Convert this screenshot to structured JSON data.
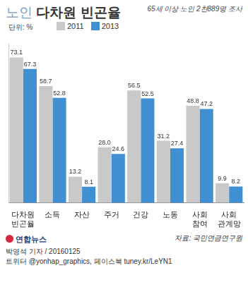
{
  "chart_data": {
    "type": "bar",
    "title": "노인 다차원 빈곤율",
    "subtitle": "65세 이상 노인 2천889명 조사",
    "unit_label": "단위: %",
    "source": "자료: 국민연금연구원",
    "credit": "박영석 기자 / 20160125",
    "social": "트위터 @yonhap_graphics, 페이스북 tuney.kr/LeYN1",
    "logo": "연합뉴스",
    "categories": [
      "다차원 빈곤율",
      "소득",
      "자산",
      "주거",
      "건강",
      "노동",
      "사회 참여",
      "사회 관계망"
    ],
    "series": [
      {
        "name": "2011",
        "color": "#c9c9c9",
        "values": [
          73.1,
          58.7,
          13.2,
          28.0,
          56.5,
          31.2,
          48.8,
          9.9
        ],
        "value_labels": [
          "73.1",
          "58.7",
          "13.2",
          "28.0",
          "56.5",
          "31.2",
          "48.8",
          "9.9"
        ]
      },
      {
        "name": "2013",
        "color": "#3f8fd2",
        "values": [
          67.3,
          52.8,
          8.1,
          24.6,
          52.5,
          27.4,
          47.2,
          8.2
        ],
        "value_labels": [
          "67.3",
          "52.8",
          "8.1",
          "24.6",
          "52.5",
          "27.4",
          "47.2",
          "8.2"
        ]
      }
    ],
    "ylim": [
      0,
      80
    ],
    "grid": false,
    "legend": "top-left",
    "data_labels": true,
    "tick_labels": "x"
  }
}
